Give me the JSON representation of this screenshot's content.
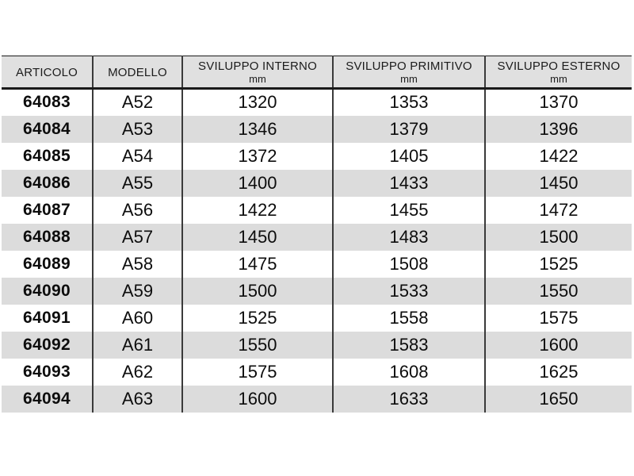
{
  "table": {
    "headers": [
      {
        "label": "ARTICOLO",
        "unit": ""
      },
      {
        "label": "MODELLO",
        "unit": ""
      },
      {
        "label": "SVILUPPO INTERNO",
        "unit": "mm"
      },
      {
        "label": "SVILUPPO PRIMITIVO",
        "unit": "mm"
      },
      {
        "label": "SVILUPPO ESTERNO",
        "unit": "mm"
      }
    ],
    "column_keys": [
      "articolo",
      "modello",
      "sviluppo-interno",
      "sviluppo-primitivo",
      "sviluppo-esterno"
    ],
    "rows": [
      [
        "64083",
        "A52",
        "1320",
        "1353",
        "1370"
      ],
      [
        "64084",
        "A53",
        "1346",
        "1379",
        "1396"
      ],
      [
        "64085",
        "A54",
        "1372",
        "1405",
        "1422"
      ],
      [
        "64086",
        "A55",
        "1400",
        "1433",
        "1450"
      ],
      [
        "64087",
        "A56",
        "1422",
        "1455",
        "1472"
      ],
      [
        "64088",
        "A57",
        "1450",
        "1483",
        "1500"
      ],
      [
        "64089",
        "A58",
        "1475",
        "1508",
        "1525"
      ],
      [
        "64090",
        "A59",
        "1500",
        "1533",
        "1550"
      ],
      [
        "64091",
        "A60",
        "1525",
        "1558",
        "1575"
      ],
      [
        "64092",
        "A61",
        "1550",
        "1583",
        "1600"
      ],
      [
        "64093",
        "A62",
        "1575",
        "1608",
        "1625"
      ],
      [
        "64094",
        "A63",
        "1600",
        "1633",
        "1650"
      ]
    ],
    "colors": {
      "header_bg": "#e0e0e0",
      "stripe_bg": "#dcdcdc",
      "line": "#1a1a1a",
      "separator": "#3a3a3a",
      "header_text": "#1c1c1c",
      "body_text": "#0d0d0d",
      "page_bg": "#ffffff"
    }
  }
}
